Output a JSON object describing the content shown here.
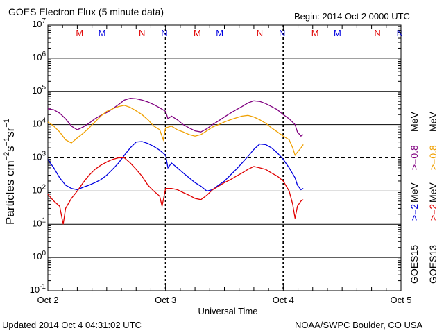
{
  "header": {
    "title": "GOES Electron Flux (5 minute data)",
    "begin": "Begin: 2014 Oct 2 0000 UTC"
  },
  "footer": {
    "updated": "Updated 2014 Oct  4 04:31:02 UTC",
    "credit": "NOAA/SWPC Boulder, CO USA"
  },
  "chart_data": {
    "type": "line",
    "title": "GOES Electron Flux (5 minute data)",
    "xlabel": "Universal Time",
    "ylabel": "Particles cm-2s-1sr-1",
    "yscale": "log",
    "ylim_exp": [
      -1,
      7
    ],
    "yticks": [
      "10-1",
      "100",
      "101",
      "102",
      "103",
      "104",
      "105",
      "106",
      "107"
    ],
    "xlim_days": [
      0,
      3
    ],
    "xticks": [
      "Oct 2",
      "Oct 3",
      "Oct 4",
      "Oct 5"
    ],
    "threshold_line": 1000,
    "markers": [
      {
        "label": "M",
        "day": 0.27,
        "color": "#e00000"
      },
      {
        "label": "M",
        "day": 0.46,
        "color": "#0000e0"
      },
      {
        "label": "N",
        "day": 0.8,
        "color": "#e00000"
      },
      {
        "label": "N",
        "day": 0.99,
        "color": "#0000e0"
      },
      {
        "label": "M",
        "day": 1.27,
        "color": "#e00000"
      },
      {
        "label": "M",
        "day": 1.46,
        "color": "#0000e0"
      },
      {
        "label": "N",
        "day": 1.8,
        "color": "#e00000"
      },
      {
        "label": "N",
        "day": 1.99,
        "color": "#0000e0"
      },
      {
        "label": "M",
        "day": 2.27,
        "color": "#e00000"
      },
      {
        "label": "M",
        "day": 2.46,
        "color": "#0000e0"
      },
      {
        "label": "N",
        "day": 2.8,
        "color": "#e00000"
      },
      {
        "label": "N",
        "day": 2.99,
        "color": "#0000e0"
      }
    ],
    "legend": [
      {
        "satellite": "GOES15",
        "threshold": ">=2",
        "mev": "MeV",
        "color": "#0000e0"
      },
      {
        "satellite": "GOES13",
        "threshold": ">=2",
        "mev": "MeV",
        "color": "#e00000"
      },
      {
        "satellite": "GOES15",
        "threshold": ">=0.8",
        "mev": "MeV",
        "color": "#800080"
      },
      {
        "satellite": "GOES13",
        "threshold": ">=0.8",
        "mev": "MeV",
        "color": "#f0a000"
      }
    ],
    "legend_text": {
      "goes15": "GOES15",
      "goes13": "GOES13",
      "ge2": ">=2",
      "ge08": ">=0.8",
      "mev": "MeV"
    },
    "series": [
      {
        "name": "GOES15 >=0.8 MeV",
        "color": "#800080",
        "x": [
          0,
          0.05,
          0.1,
          0.15,
          0.2,
          0.25,
          0.3,
          0.35,
          0.4,
          0.45,
          0.5,
          0.55,
          0.6,
          0.65,
          0.7,
          0.75,
          0.8,
          0.85,
          0.9,
          0.95,
          1.0,
          1.02,
          1.05,
          1.1,
          1.15,
          1.2,
          1.25,
          1.3,
          1.35,
          1.4,
          1.45,
          1.5,
          1.55,
          1.6,
          1.65,
          1.7,
          1.75,
          1.8,
          1.85,
          1.9,
          1.95,
          2.0,
          2.05,
          2.1,
          2.12,
          2.15,
          2.17
        ],
        "y": [
          30000,
          28000,
          22000,
          15000,
          9000,
          7000,
          8500,
          11000,
          15000,
          19000,
          23000,
          30000,
          40000,
          55000,
          62000,
          60000,
          55000,
          48000,
          40000,
          32000,
          25000,
          15000,
          18000,
          14000,
          10000,
          8000,
          6500,
          6000,
          7500,
          10000,
          13000,
          17000,
          22000,
          28000,
          35000,
          45000,
          52000,
          50000,
          43000,
          35000,
          28000,
          20000,
          15000,
          10000,
          6000,
          4500,
          5000
        ]
      },
      {
        "name": "GOES13 >=0.8 MeV",
        "color": "#f0a000",
        "x": [
          0,
          0.05,
          0.1,
          0.15,
          0.2,
          0.25,
          0.3,
          0.35,
          0.4,
          0.45,
          0.5,
          0.55,
          0.6,
          0.65,
          0.7,
          0.75,
          0.8,
          0.85,
          0.9,
          0.95,
          0.98,
          1.0,
          1.05,
          1.1,
          1.15,
          1.2,
          1.25,
          1.3,
          1.35,
          1.4,
          1.45,
          1.5,
          1.55,
          1.6,
          1.65,
          1.7,
          1.75,
          1.8,
          1.85,
          1.9,
          1.95,
          2.0,
          2.05,
          2.08,
          2.1,
          2.15,
          2.17
        ],
        "y": [
          12000,
          9000,
          6000,
          3500,
          2800,
          4000,
          5500,
          8000,
          12000,
          18000,
          25000,
          30000,
          35000,
          38000,
          33000,
          26000,
          20000,
          14000,
          9000,
          7000,
          3500,
          8000,
          9000,
          7000,
          6000,
          5000,
          4500,
          5000,
          6500,
          8500,
          10000,
          12000,
          14000,
          16000,
          18000,
          19000,
          17000,
          14000,
          11000,
          8000,
          6000,
          4500,
          3500,
          2000,
          1200,
          2000,
          2500
        ]
      },
      {
        "name": "GOES15 >=2 MeV",
        "color": "#0000e0",
        "x": [
          0,
          0.05,
          0.1,
          0.15,
          0.2,
          0.25,
          0.3,
          0.35,
          0.4,
          0.45,
          0.5,
          0.55,
          0.6,
          0.65,
          0.7,
          0.75,
          0.8,
          0.85,
          0.9,
          0.95,
          1.0,
          1.02,
          1.05,
          1.1,
          1.15,
          1.2,
          1.25,
          1.3,
          1.35,
          1.4,
          1.45,
          1.5,
          1.55,
          1.6,
          1.65,
          1.7,
          1.75,
          1.8,
          1.85,
          1.9,
          1.95,
          2.0,
          2.05,
          2.1,
          2.12,
          2.15,
          2.17
        ],
        "y": [
          900,
          500,
          250,
          150,
          120,
          110,
          130,
          150,
          180,
          220,
          300,
          450,
          700,
          1200,
          2000,
          3000,
          3100,
          2700,
          2200,
          1700,
          1200,
          500,
          700,
          500,
          350,
          250,
          180,
          140,
          100,
          110,
          150,
          200,
          300,
          450,
          700,
          1100,
          1800,
          2600,
          2500,
          2000,
          1400,
          900,
          500,
          250,
          150,
          110,
          120
        ]
      },
      {
        "name": "GOES13 >=2 MeV",
        "color": "#e00000",
        "x": [
          0,
          0.05,
          0.1,
          0.13,
          0.15,
          0.2,
          0.25,
          0.3,
          0.35,
          0.4,
          0.45,
          0.5,
          0.55,
          0.6,
          0.65,
          0.7,
          0.75,
          0.8,
          0.85,
          0.9,
          0.95,
          0.97,
          1.0,
          1.05,
          1.1,
          1.15,
          1.2,
          1.25,
          1.3,
          1.35,
          1.4,
          1.45,
          1.5,
          1.55,
          1.6,
          1.65,
          1.7,
          1.75,
          1.8,
          1.85,
          1.9,
          1.95,
          2.0,
          2.05,
          2.08,
          2.1,
          2.12,
          2.15,
          2.17
        ],
        "y": [
          80,
          50,
          35,
          10,
          30,
          60,
          100,
          180,
          300,
          450,
          600,
          750,
          900,
          1000,
          1000,
          700,
          450,
          280,
          150,
          100,
          70,
          35,
          120,
          120,
          110,
          90,
          75,
          60,
          55,
          75,
          110,
          140,
          180,
          220,
          280,
          350,
          450,
          550,
          500,
          450,
          350,
          280,
          200,
          100,
          40,
          15,
          35,
          50,
          55
        ]
      }
    ]
  }
}
